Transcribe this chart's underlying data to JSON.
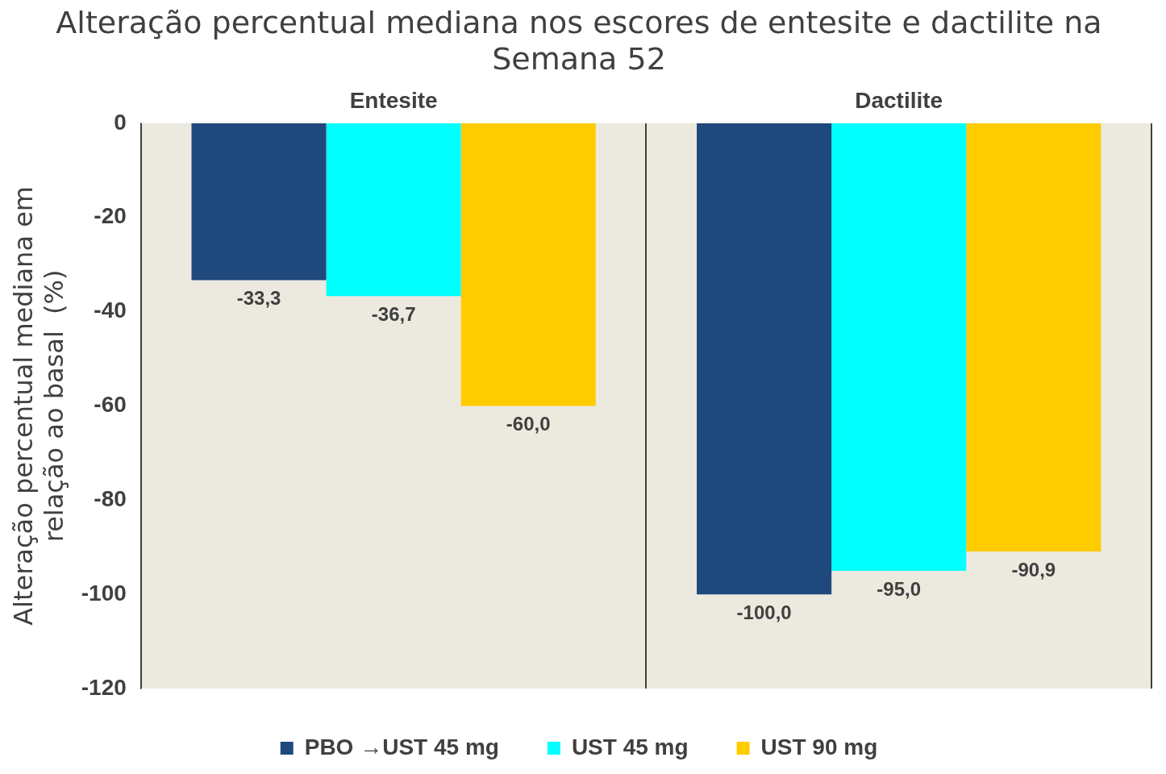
{
  "chart_data": {
    "type": "bar",
    "title": "Alteração percentual mediana nos escores de entesite e dactilite na Semana 52",
    "ylabel": "Alteração percentual mediana em relação ao basal  (%)",
    "categories": [
      "Entesite",
      "Dactilite"
    ],
    "series": [
      {
        "name": "PBO →UST 45 mg",
        "color": "#1f497d",
        "values": [
          -33.3,
          -100.0
        ]
      },
      {
        "name": "UST 45 mg",
        "color": "#00ffff",
        "values": [
          -36.7,
          -95.0
        ]
      },
      {
        "name": "UST 90 mg",
        "color": "#ffcc00",
        "values": [
          -60.0,
          -90.9
        ]
      }
    ],
    "value_labels": [
      [
        "-33,3",
        "-100,0"
      ],
      [
        "-36,7",
        "-95,0"
      ],
      [
        "-60,0",
        "-90,9"
      ]
    ],
    "ylim": [
      -120,
      0
    ],
    "yticks": [
      0,
      -20,
      -40,
      -60,
      -80,
      -100,
      -120
    ],
    "grid": "x",
    "legend": "bottom"
  }
}
